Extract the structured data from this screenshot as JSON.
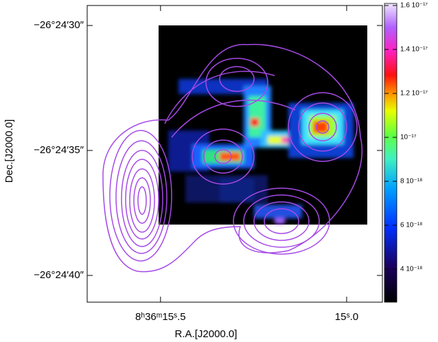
{
  "chart_data": {
    "type": "image",
    "xlabel": "R.A.[J2000.0]",
    "ylabel": "Dec.[J2000.0]",
    "xlim": [
      15.697,
      14.904
    ],
    "xticks": [
      {
        "value": 15.5,
        "label": "8ʰ36ᵐ15ˢ.5"
      },
      {
        "value": 15.0,
        "label": "15ˢ.0"
      }
    ],
    "ylim": [
      41.07,
      29.2
    ],
    "yticks": [
      {
        "value": 30,
        "label": "−26°24′30″"
      },
      {
        "value": 35,
        "label": "−26°24′35″"
      },
      {
        "value": 40,
        "label": "−26°24′40″"
      }
    ],
    "contour_color": "#a64ae6",
    "colorbar": {
      "lim": [
        2.5e-18,
        1.6e-17
      ],
      "ticks": [
        {
          "value": 1.6e-17,
          "label": "1.6 10⁻¹⁷"
        },
        {
          "value": 1.4e-17,
          "label": "1.4 10⁻¹⁷"
        },
        {
          "value": 1.2e-17,
          "label": "1.2 10⁻¹⁷"
        },
        {
          "value": 1e-17,
          "label": "10⁻¹⁷"
        },
        {
          "value": 8e-18,
          "label": "8 10⁻¹⁸"
        },
        {
          "value": 6e-18,
          "label": "6 10⁻¹⁸"
        },
        {
          "value": 4e-18,
          "label": "4 10⁻¹⁸"
        }
      ]
    }
  }
}
